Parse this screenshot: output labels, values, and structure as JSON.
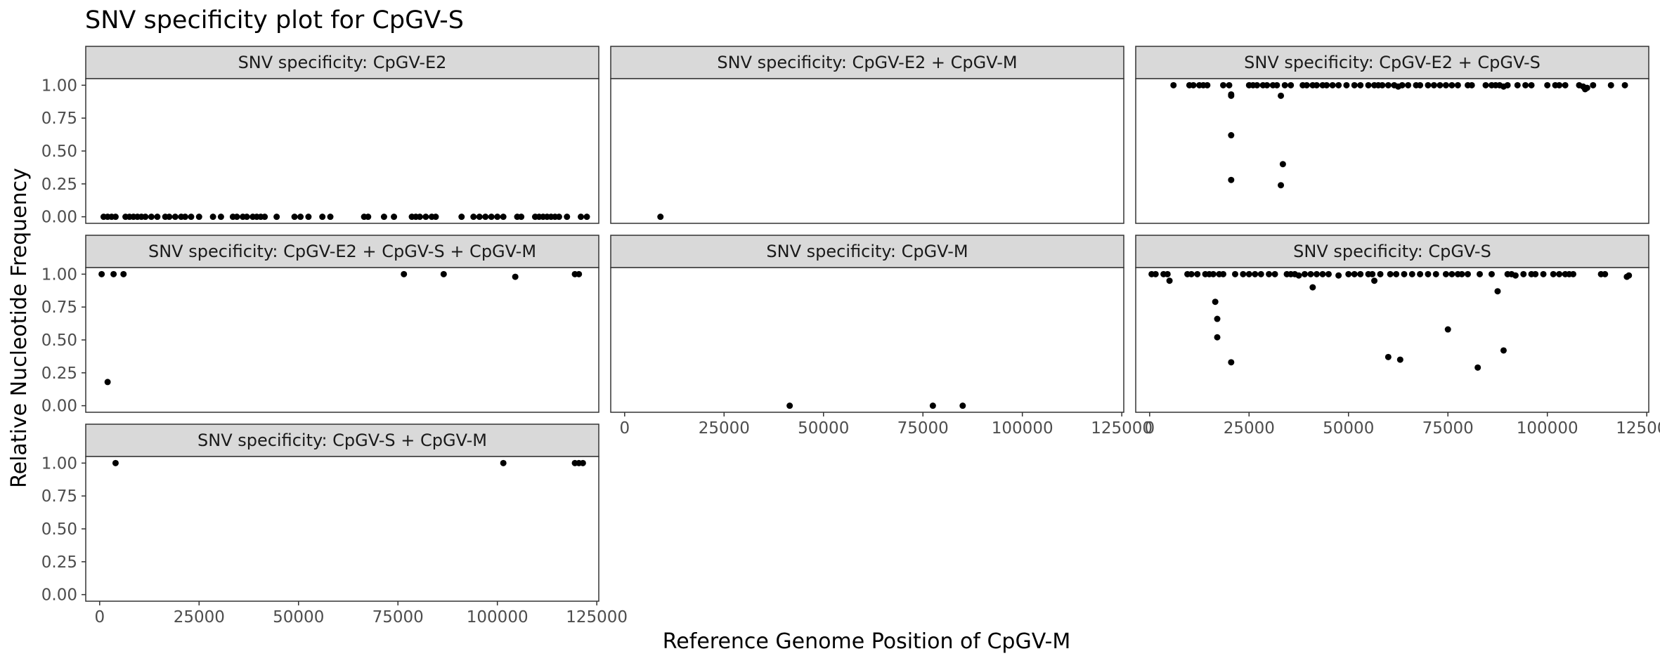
{
  "chart_data": {
    "type": "scatter",
    "title": "SNV specificity plot for CpGV-S",
    "xlabel": "Reference Genome Position of CpGV-M",
    "ylabel": "Relative Nucleotide Frequency",
    "xlim": [
      -3500,
      125500
    ],
    "ylim": [
      -0.05,
      1.05
    ],
    "x_ticks": [
      0,
      25000,
      50000,
      75000,
      100000,
      125000
    ],
    "y_ticks": [
      "0.00",
      "0.25",
      "0.50",
      "0.75",
      "1.00"
    ],
    "grid": false,
    "point_color": "#000000",
    "strip_fill": "#d9d9d9",
    "panels": [
      {
        "name": "SNV specificity: CpGV-E2",
        "points": [
          [
            1000,
            0
          ],
          [
            2000,
            0
          ],
          [
            3000,
            0
          ],
          [
            4000,
            0
          ],
          [
            6500,
            0
          ],
          [
            7500,
            0
          ],
          [
            8500,
            0
          ],
          [
            9500,
            0
          ],
          [
            10500,
            0
          ],
          [
            11500,
            0
          ],
          [
            13000,
            0
          ],
          [
            14500,
            0
          ],
          [
            16500,
            0
          ],
          [
            17500,
            0
          ],
          [
            19000,
            0
          ],
          [
            20500,
            0
          ],
          [
            21500,
            0
          ],
          [
            23000,
            0
          ],
          [
            25000,
            0
          ],
          [
            28500,
            0
          ],
          [
            30500,
            0
          ],
          [
            33500,
            0
          ],
          [
            34500,
            0
          ],
          [
            36000,
            0
          ],
          [
            37000,
            0
          ],
          [
            38500,
            0
          ],
          [
            39500,
            0
          ],
          [
            40500,
            0
          ],
          [
            41500,
            0
          ],
          [
            44500,
            0
          ],
          [
            49000,
            0
          ],
          [
            50500,
            0
          ],
          [
            52500,
            0
          ],
          [
            56000,
            0
          ],
          [
            58000,
            0
          ],
          [
            66500,
            0
          ],
          [
            67500,
            0
          ],
          [
            71500,
            0
          ],
          [
            74000,
            0
          ],
          [
            78500,
            0
          ],
          [
            79500,
            0
          ],
          [
            80500,
            0
          ],
          [
            82000,
            0
          ],
          [
            83500,
            0
          ],
          [
            84500,
            0
          ],
          [
            91000,
            0
          ],
          [
            94000,
            0
          ],
          [
            95500,
            0
          ],
          [
            97000,
            0
          ],
          [
            98500,
            0
          ],
          [
            100000,
            0
          ],
          [
            101500,
            0
          ],
          [
            105000,
            0
          ],
          [
            106000,
            0
          ],
          [
            109500,
            0
          ],
          [
            110500,
            0
          ],
          [
            111500,
            0
          ],
          [
            112500,
            0
          ],
          [
            113500,
            0
          ],
          [
            114500,
            0
          ],
          [
            115500,
            0
          ],
          [
            117500,
            0
          ],
          [
            121000,
            0
          ],
          [
            122500,
            0
          ]
        ]
      },
      {
        "name": "SNV specificity: CpGV-E2 + CpGV-M",
        "points": [
          [
            9000,
            0
          ]
        ]
      },
      {
        "name": "SNV specificity: CpGV-E2 + CpGV-S",
        "points": [
          [
            6000,
            1
          ],
          [
            10000,
            1
          ],
          [
            11000,
            1
          ],
          [
            12500,
            1
          ],
          [
            13500,
            1
          ],
          [
            14500,
            1
          ],
          [
            18500,
            1
          ],
          [
            20000,
            1
          ],
          [
            20500,
            0.93
          ],
          [
            20500,
            0.92
          ],
          [
            20500,
            0.62
          ],
          [
            20500,
            0.28
          ],
          [
            25000,
            1
          ],
          [
            26000,
            1
          ],
          [
            27000,
            1
          ],
          [
            28500,
            1
          ],
          [
            29500,
            1
          ],
          [
            31000,
            1
          ],
          [
            32000,
            1
          ],
          [
            33000,
            0.92
          ],
          [
            33500,
            0.4
          ],
          [
            33000,
            0.24
          ],
          [
            34000,
            1
          ],
          [
            35500,
            1
          ],
          [
            38500,
            1
          ],
          [
            39500,
            1
          ],
          [
            41000,
            1
          ],
          [
            42000,
            1
          ],
          [
            43500,
            1
          ],
          [
            44500,
            1
          ],
          [
            46000,
            1
          ],
          [
            47500,
            1
          ],
          [
            49500,
            1
          ],
          [
            51500,
            1
          ],
          [
            53000,
            1
          ],
          [
            55000,
            1
          ],
          [
            56500,
            1
          ],
          [
            57500,
            1
          ],
          [
            58500,
            1
          ],
          [
            60000,
            1
          ],
          [
            61500,
            1
          ],
          [
            62500,
            0.99
          ],
          [
            63500,
            1
          ],
          [
            65000,
            1
          ],
          [
            67000,
            1
          ],
          [
            68000,
            1
          ],
          [
            70000,
            1
          ],
          [
            71500,
            1
          ],
          [
            73000,
            1
          ],
          [
            74500,
            1
          ],
          [
            76000,
            1
          ],
          [
            77500,
            1
          ],
          [
            80000,
            1
          ],
          [
            81000,
            1
          ],
          [
            84500,
            1
          ],
          [
            86000,
            1
          ],
          [
            87000,
            1
          ],
          [
            88000,
            1
          ],
          [
            89000,
            0.99
          ],
          [
            90000,
            1
          ],
          [
            92500,
            1
          ],
          [
            94500,
            1
          ],
          [
            96000,
            1
          ],
          [
            100000,
            1
          ],
          [
            102000,
            1
          ],
          [
            103000,
            1
          ],
          [
            104500,
            1
          ],
          [
            108000,
            1
          ],
          [
            109000,
            0.99
          ],
          [
            109500,
            0.97
          ],
          [
            110000,
            0.98
          ],
          [
            111500,
            1
          ],
          [
            116000,
            1
          ],
          [
            119500,
            1
          ]
        ]
      },
      {
        "name": "SNV specificity: CpGV-E2 + CpGV-S + CpGV-M",
        "points": [
          [
            500,
            1
          ],
          [
            3500,
            1
          ],
          [
            6000,
            1
          ],
          [
            2000,
            0.18
          ],
          [
            76500,
            1
          ],
          [
            86500,
            1
          ],
          [
            104500,
            0.98
          ],
          [
            119500,
            1
          ],
          [
            120500,
            1
          ]
        ]
      },
      {
        "name": "SNV specificity: CpGV-M",
        "points": [
          [
            41500,
            0
          ],
          [
            77500,
            0
          ],
          [
            85000,
            0
          ]
        ]
      },
      {
        "name": "SNV specificity: CpGV-S",
        "points": [
          [
            500,
            1
          ],
          [
            1500,
            1
          ],
          [
            3500,
            1
          ],
          [
            4500,
            1
          ],
          [
            5000,
            0.95
          ],
          [
            9500,
            1
          ],
          [
            10500,
            1
          ],
          [
            12000,
            1
          ],
          [
            14000,
            1
          ],
          [
            15000,
            1
          ],
          [
            16000,
            1
          ],
          [
            16500,
            0.79
          ],
          [
            17000,
            0.66
          ],
          [
            17000,
            0.52
          ],
          [
            17500,
            1
          ],
          [
            18500,
            1
          ],
          [
            20500,
            0.33
          ],
          [
            21500,
            1
          ],
          [
            23500,
            1
          ],
          [
            25000,
            1
          ],
          [
            26500,
            1
          ],
          [
            28000,
            1
          ],
          [
            30000,
            1
          ],
          [
            31500,
            1
          ],
          [
            34500,
            1
          ],
          [
            35500,
            1
          ],
          [
            36500,
            1
          ],
          [
            37500,
            0.99
          ],
          [
            39000,
            1
          ],
          [
            40500,
            1
          ],
          [
            41000,
            0.9
          ],
          [
            42000,
            1
          ],
          [
            43500,
            1
          ],
          [
            45000,
            1
          ],
          [
            47500,
            0.99
          ],
          [
            50000,
            1
          ],
          [
            51500,
            1
          ],
          [
            53000,
            1
          ],
          [
            55000,
            1
          ],
          [
            56000,
            1
          ],
          [
            56500,
            0.95
          ],
          [
            58000,
            1
          ],
          [
            60000,
            0.37
          ],
          [
            60500,
            1
          ],
          [
            62000,
            1
          ],
          [
            63000,
            0.35
          ],
          [
            64000,
            1
          ],
          [
            66000,
            1
          ],
          [
            68000,
            1
          ],
          [
            70000,
            1
          ],
          [
            72000,
            1
          ],
          [
            74500,
            1
          ],
          [
            75000,
            0.58
          ],
          [
            76000,
            1
          ],
          [
            77500,
            1
          ],
          [
            78500,
            1
          ],
          [
            80000,
            1
          ],
          [
            82500,
            0.29
          ],
          [
            83000,
            1
          ],
          [
            86000,
            1
          ],
          [
            87500,
            0.87
          ],
          [
            89000,
            0.42
          ],
          [
            90000,
            1
          ],
          [
            91000,
            1
          ],
          [
            92000,
            0.99
          ],
          [
            94000,
            1
          ],
          [
            96000,
            1
          ],
          [
            97000,
            1
          ],
          [
            99000,
            1
          ],
          [
            101500,
            1
          ],
          [
            103000,
            1
          ],
          [
            104500,
            1
          ],
          [
            105500,
            1
          ],
          [
            106500,
            1
          ],
          [
            113500,
            1
          ],
          [
            114500,
            1
          ],
          [
            120000,
            0.98
          ],
          [
            120500,
            0.99
          ]
        ]
      },
      {
        "name": "SNV specificity: CpGV-S + CpGV-M",
        "points": [
          [
            4000,
            1
          ],
          [
            101500,
            1
          ],
          [
            119500,
            1
          ],
          [
            120500,
            1
          ],
          [
            121500,
            1
          ]
        ]
      }
    ]
  }
}
